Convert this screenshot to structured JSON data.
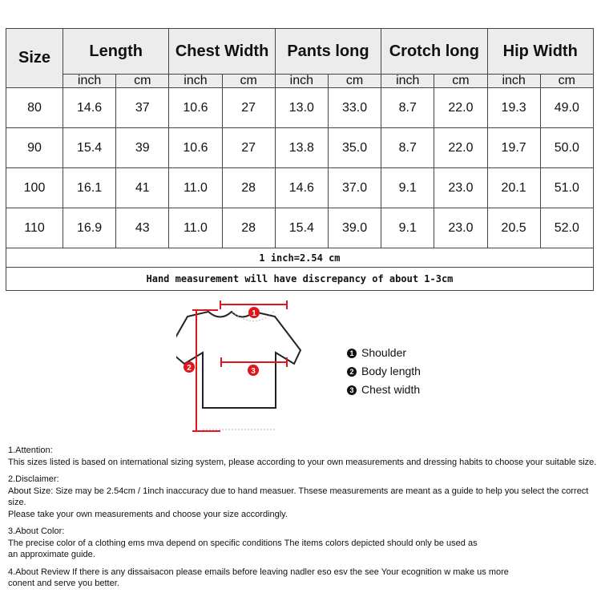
{
  "table": {
    "headers": [
      "Size",
      "Length",
      "Chest Width",
      "Pants long",
      "Crotch long",
      "Hip Width"
    ],
    "units": [
      "inch",
      "cm"
    ],
    "rows": [
      [
        "80",
        "14.6",
        "37",
        "10.6",
        "27",
        "13.0",
        "33.0",
        "8.7",
        "22.0",
        "19.3",
        "49.0"
      ],
      [
        "90",
        "15.4",
        "39",
        "10.6",
        "27",
        "13.8",
        "35.0",
        "8.7",
        "22.0",
        "19.7",
        "50.0"
      ],
      [
        "100",
        "16.1",
        "41",
        "11.0",
        "28",
        "14.6",
        "37.0",
        "9.1",
        "23.0",
        "20.1",
        "51.0"
      ],
      [
        "110",
        "16.9",
        "43",
        "11.0",
        "28",
        "15.4",
        "39.0",
        "9.1",
        "23.0",
        "20.5",
        "52.0"
      ]
    ],
    "conversion_note": "1 inch=2.54 cm",
    "discrepancy_note": "Hand measurement will have discrepancy of about 1-3cm"
  },
  "diagram": {
    "markers": [
      "1",
      "2",
      "3"
    ],
    "legend": [
      {
        "num": "1",
        "label": "Shoulder"
      },
      {
        "num": "2",
        "label": "Body length"
      },
      {
        "num": "3",
        "label": "Chest width"
      }
    ],
    "accent_color": "#e0161b"
  },
  "notes": [
    {
      "title": "1.Attention:",
      "lines": [
        "This sizes listed is based on international sizing system, please according to your own measurements and dressing habits to choose your suitable size."
      ]
    },
    {
      "title": "2.Disclaimer:",
      "lines": [
        "About Size: Size may be 2.54cm / 1inch inaccuracy due to hand measuer. Thsese measurements are meant as a guide to help you select the correct size.",
        "Please take your own measurements and choose your size accordingly."
      ]
    },
    {
      "title": "3.About Color:",
      "lines": [
        "The precise color of a clothing ems mva depend on specific conditions The items colors depicted should only be used as",
        "an approximate guide."
      ]
    },
    {
      "title": "",
      "lines": [
        "4.About Review If there is any dissaisacon please emails before leaving nadler eso esv the see Your ecognition w make us more",
        "conent and serve you better."
      ]
    }
  ]
}
